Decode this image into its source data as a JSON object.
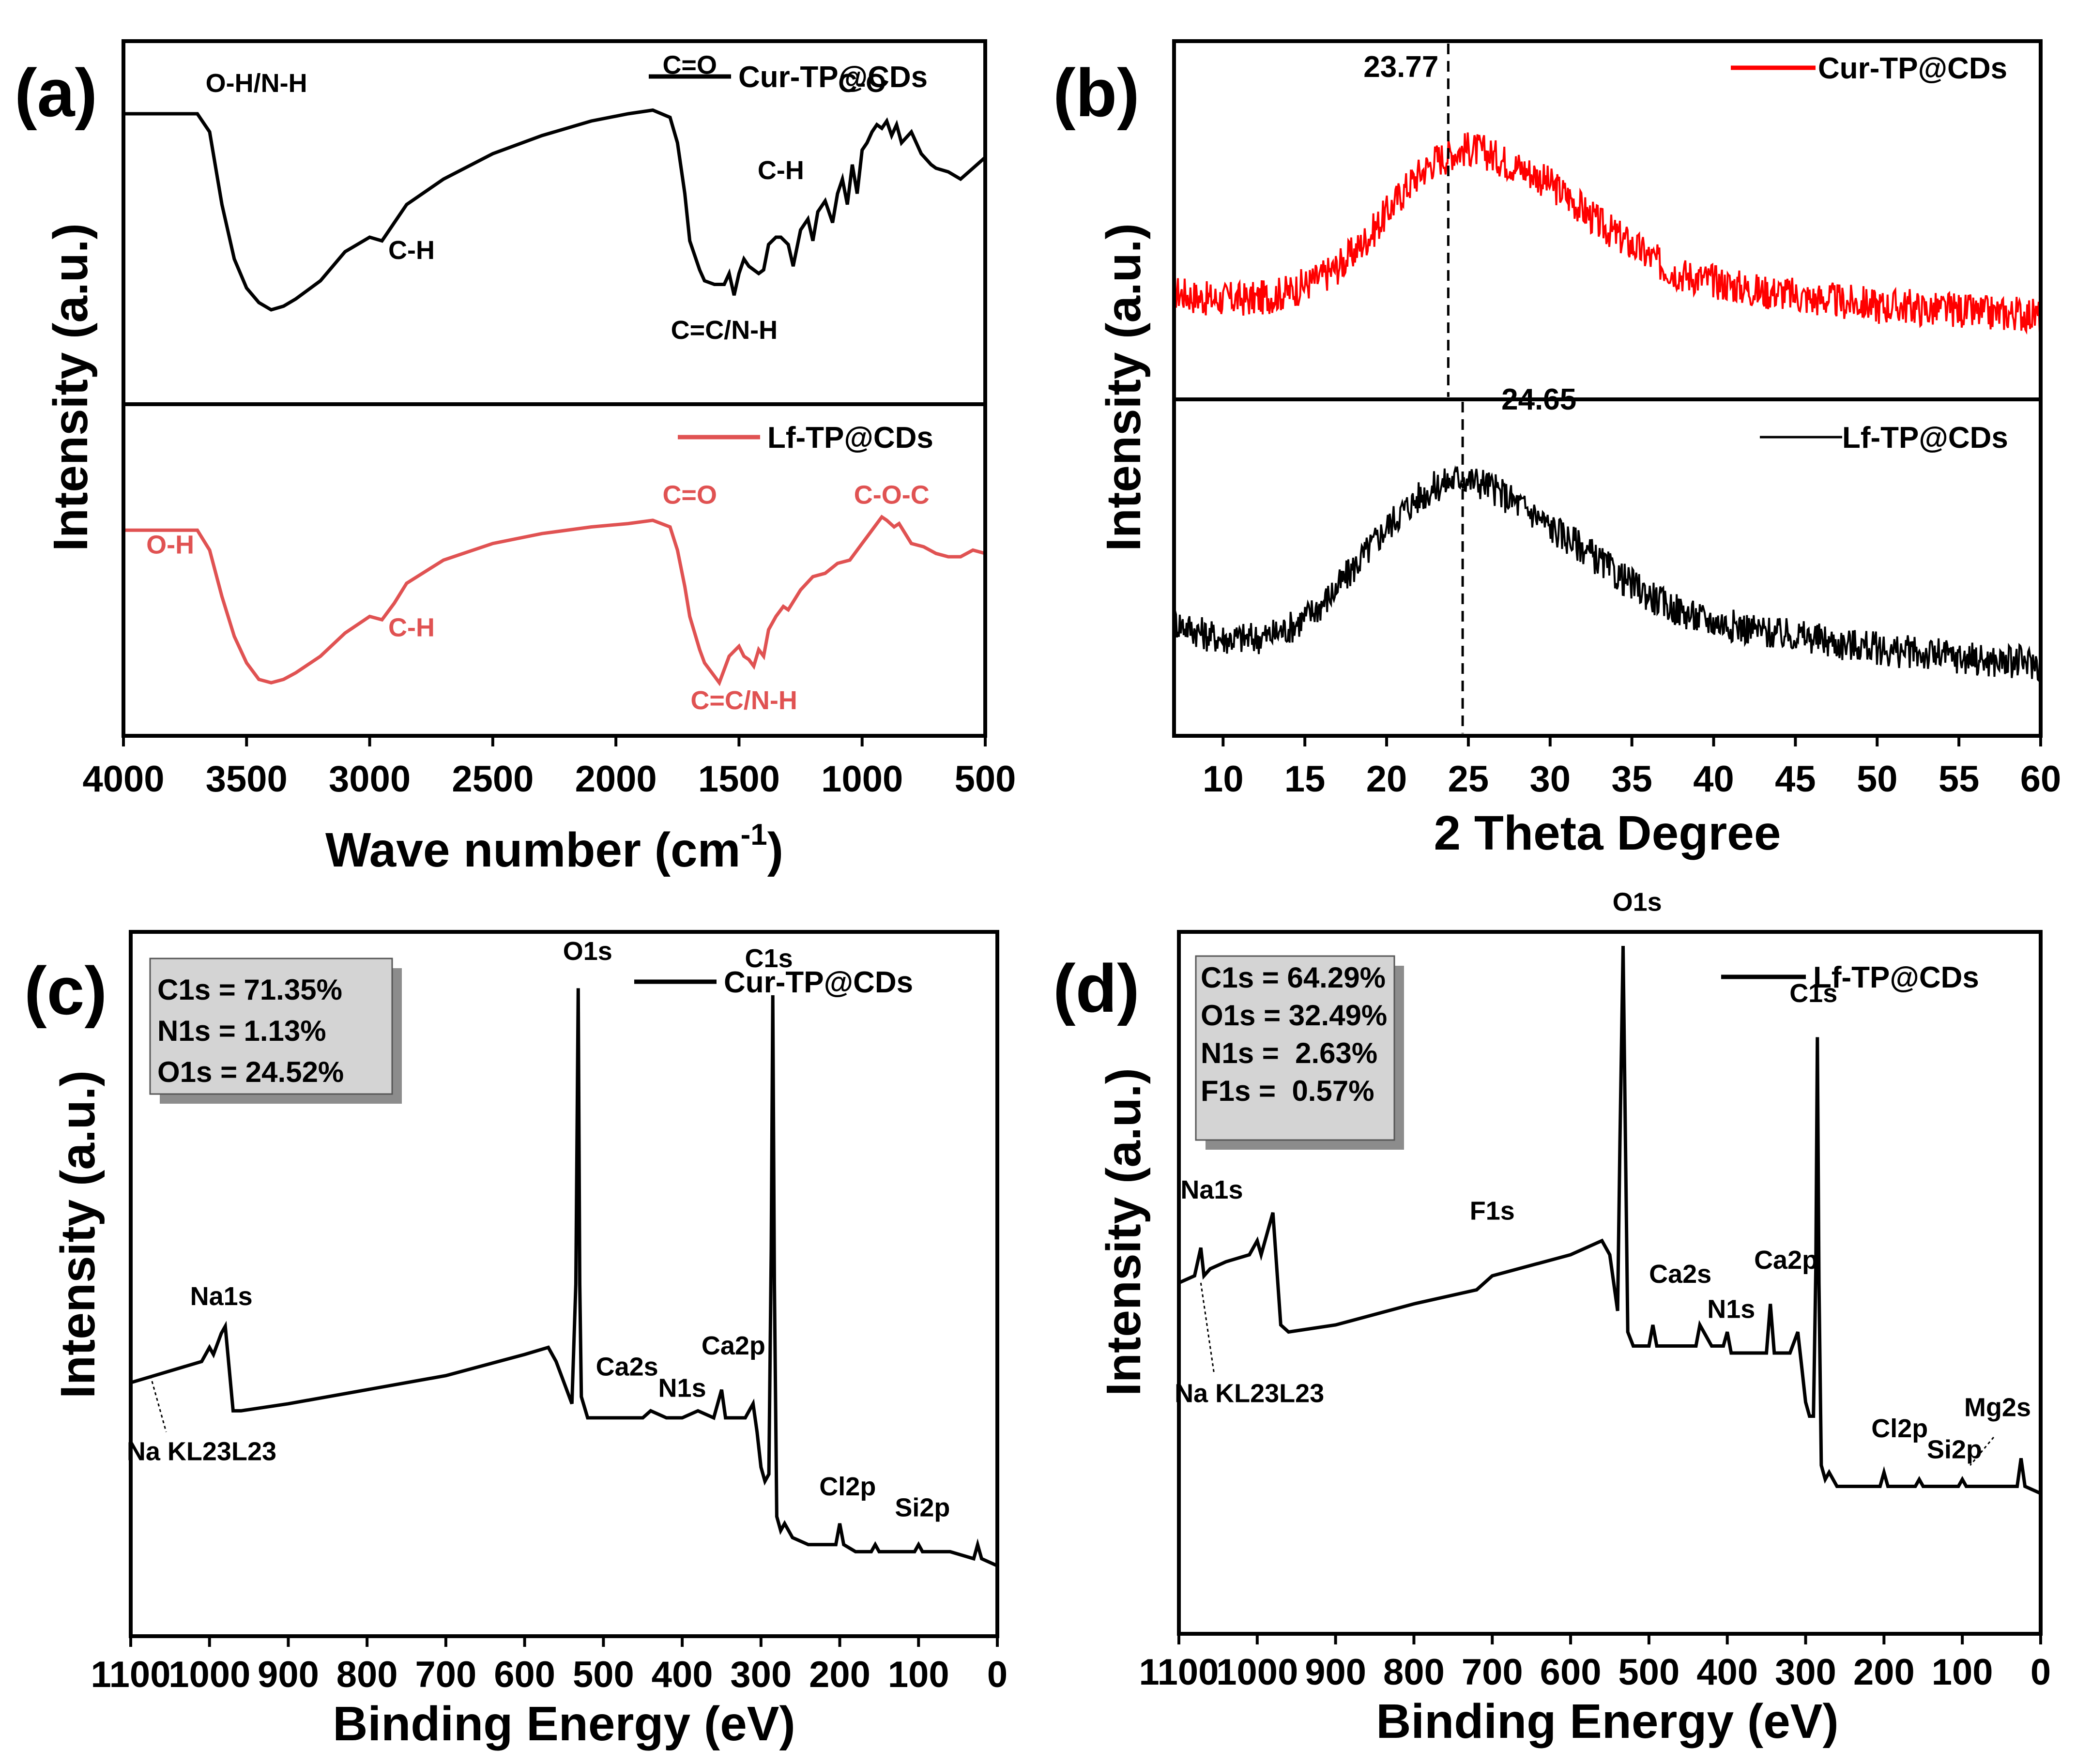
{
  "chart_data": [
    {
      "panel": "(a)",
      "type": "line",
      "xlabel": "Wave number (cm",
      "xlabel_sup": "-1",
      "xlabel_close": ")",
      "ylabel": "Intensity (a.u.)",
      "xlim": [
        4000,
        500
      ],
      "xticks": [
        "4000",
        "3500",
        "3000",
        "2500",
        "2000",
        "1500",
        "1000",
        "500"
      ],
      "series": [
        {
          "name": "Cur-TP@CDs",
          "color": "#000000",
          "x": [
            4000,
            3800,
            3700,
            3650,
            3600,
            3550,
            3500,
            3450,
            3400,
            3350,
            3300,
            3200,
            3100,
            3000,
            2950,
            2930,
            2900,
            2850,
            2700,
            2500,
            2300,
            2100,
            1950,
            1850,
            1780,
            1750,
            1720,
            1700,
            1660,
            1640,
            1600,
            1560,
            1540,
            1520,
            1500,
            1480,
            1460,
            1420,
            1400,
            1380,
            1350,
            1330,
            1300,
            1280,
            1250,
            1220,
            1200,
            1180,
            1150,
            1120,
            1100,
            1080,
            1060,
            1040,
            1020,
            1000,
            980,
            960,
            940,
            920,
            900,
            880,
            860,
            840,
            800,
            760,
            720,
            700,
            650,
            600,
            550,
            500
          ],
          "y": [
            0.8,
            0.8,
            0.8,
            0.75,
            0.55,
            0.4,
            0.32,
            0.28,
            0.26,
            0.27,
            0.29,
            0.34,
            0.42,
            0.46,
            0.45,
            0.47,
            0.5,
            0.55,
            0.62,
            0.69,
            0.74,
            0.78,
            0.8,
            0.81,
            0.79,
            0.72,
            0.58,
            0.45,
            0.37,
            0.34,
            0.33,
            0.33,
            0.36,
            0.3,
            0.36,
            0.4,
            0.38,
            0.36,
            0.37,
            0.44,
            0.46,
            0.46,
            0.44,
            0.38,
            0.48,
            0.51,
            0.45,
            0.53,
            0.56,
            0.5,
            0.58,
            0.62,
            0.55,
            0.66,
            0.58,
            0.7,
            0.72,
            0.75,
            0.77,
            0.76,
            0.78,
            0.74,
            0.77,
            0.72,
            0.75,
            0.69,
            0.66,
            0.65,
            0.64,
            0.62,
            0.65,
            0.68
          ]
        },
        {
          "name": "Lf-TP@CDs",
          "color": "#e05252",
          "x": [
            4000,
            3800,
            3700,
            3650,
            3600,
            3550,
            3500,
            3450,
            3400,
            3350,
            3300,
            3200,
            3100,
            3000,
            2950,
            2930,
            2900,
            2850,
            2700,
            2500,
            2300,
            2100,
            1950,
            1850,
            1780,
            1750,
            1720,
            1700,
            1660,
            1640,
            1620,
            1600,
            1580,
            1560,
            1540,
            1500,
            1480,
            1460,
            1440,
            1420,
            1400,
            1380,
            1350,
            1320,
            1300,
            1250,
            1200,
            1150,
            1100,
            1050,
            1000,
            980,
            950,
            920,
            900,
            870,
            850,
            800,
            750,
            700,
            650,
            600,
            550,
            500
          ],
          "y": [
            0.62,
            0.62,
            0.62,
            0.56,
            0.42,
            0.3,
            0.22,
            0.17,
            0.16,
            0.17,
            0.19,
            0.24,
            0.31,
            0.36,
            0.35,
            0.37,
            0.4,
            0.46,
            0.53,
            0.58,
            0.61,
            0.63,
            0.64,
            0.65,
            0.63,
            0.56,
            0.45,
            0.36,
            0.26,
            0.22,
            0.2,
            0.18,
            0.16,
            0.2,
            0.24,
            0.27,
            0.24,
            0.23,
            0.21,
            0.26,
            0.24,
            0.32,
            0.36,
            0.39,
            0.38,
            0.44,
            0.48,
            0.49,
            0.52,
            0.53,
            0.58,
            0.6,
            0.63,
            0.66,
            0.65,
            0.63,
            0.64,
            0.58,
            0.57,
            0.55,
            0.54,
            0.54,
            0.56,
            0.55
          ]
        }
      ],
      "annotations_top": [
        {
          "text": "O-H/N-H",
          "x": 3460,
          "y": 0.86
        },
        {
          "text": "C-H",
          "x": 2830,
          "y": 0.4
        },
        {
          "text": "C=O",
          "x": 1700,
          "y": 0.91
        },
        {
          "text": "C=C/N-H",
          "x": 1560,
          "y": 0.18
        },
        {
          "text": "C-H",
          "x": 1330,
          "y": 0.62
        },
        {
          "text": "C-O",
          "x": 1000,
          "y": 0.86
        }
      ],
      "annotations_bottom": [
        {
          "text": "O-H",
          "x": 3810,
          "y": 0.55
        },
        {
          "text": "C-H",
          "x": 2830,
          "y": 0.3
        },
        {
          "text": "C=O",
          "x": 1700,
          "y": 0.7
        },
        {
          "text": "C=C/N-H",
          "x": 1480,
          "y": 0.08
        },
        {
          "text": "C-O-C",
          "x": 880,
          "y": 0.7
        }
      ]
    },
    {
      "panel": "(b)",
      "type": "line",
      "xlabel": "2 Theta Degree",
      "ylabel": "Intensity (a.u.)",
      "xlim": [
        7,
        60
      ],
      "xticks": [
        "10",
        "15",
        "20",
        "25",
        "30",
        "35",
        "40",
        "45",
        "50",
        "55",
        "60"
      ],
      "series": [
        {
          "name": "Cur-TP@CDs",
          "color": "#ff0000",
          "x": [
            7,
            8,
            9,
            10,
            11,
            12,
            13,
            14,
            15,
            16,
            17,
            18,
            19,
            20,
            21,
            22,
            23,
            23.77,
            24,
            25,
            26,
            27,
            28,
            29,
            30,
            31,
            32,
            33,
            34,
            35,
            36,
            37,
            38,
            39,
            40,
            41,
            42,
            43,
            44,
            45,
            46,
            47,
            48,
            49,
            50,
            51,
            52,
            53,
            54,
            55,
            56,
            57,
            58,
            59,
            60
          ],
          "y": [
            0.3,
            0.29,
            0.28,
            0.28,
            0.28,
            0.28,
            0.29,
            0.3,
            0.32,
            0.34,
            0.37,
            0.41,
            0.46,
            0.52,
            0.58,
            0.63,
            0.67,
            0.68,
            0.69,
            0.7,
            0.69,
            0.67,
            0.65,
            0.63,
            0.6,
            0.57,
            0.53,
            0.49,
            0.46,
            0.43,
            0.4,
            0.37,
            0.35,
            0.34,
            0.33,
            0.32,
            0.31,
            0.3,
            0.3,
            0.29,
            0.28,
            0.28,
            0.27,
            0.27,
            0.26,
            0.26,
            0.26,
            0.25,
            0.25,
            0.25,
            0.24,
            0.24,
            0.24,
            0.24,
            0.23
          ],
          "noise": 0.05
        },
        {
          "name": "Lf-TP@CDs",
          "color": "#000000",
          "x": [
            7,
            8,
            9,
            10,
            11,
            12,
            13,
            14,
            15,
            16,
            17,
            18,
            19,
            20,
            21,
            22,
            23,
            24,
            24.65,
            25,
            26,
            27,
            28,
            29,
            30,
            31,
            32,
            33,
            34,
            35,
            36,
            37,
            38,
            39,
            40,
            41,
            42,
            43,
            44,
            45,
            46,
            47,
            48,
            49,
            50,
            51,
            52,
            53,
            54,
            55,
            56,
            57,
            58,
            59,
            60
          ],
          "y": [
            0.34,
            0.32,
            0.3,
            0.29,
            0.29,
            0.29,
            0.3,
            0.32,
            0.35,
            0.39,
            0.44,
            0.5,
            0.56,
            0.62,
            0.67,
            0.71,
            0.74,
            0.76,
            0.77,
            0.76,
            0.75,
            0.72,
            0.69,
            0.66,
            0.62,
            0.59,
            0.56,
            0.52,
            0.48,
            0.45,
            0.42,
            0.39,
            0.37,
            0.35,
            0.34,
            0.33,
            0.32,
            0.31,
            0.3,
            0.3,
            0.29,
            0.28,
            0.27,
            0.27,
            0.26,
            0.25,
            0.25,
            0.24,
            0.24,
            0.23,
            0.23,
            0.22,
            0.22,
            0.22,
            0.21
          ],
          "noise": 0.05
        }
      ],
      "peak_labels": [
        {
          "text": "23.77",
          "x": 23.77
        },
        {
          "text": "24.65",
          "x": 24.65
        }
      ]
    },
    {
      "panel": "(c)",
      "type": "line",
      "xlabel": "Binding Energy (eV)",
      "ylabel": "Intensity (a.u.)",
      "xlim": [
        1100,
        0
      ],
      "xticks": [
        "1100",
        "1000",
        "900",
        "800",
        "700",
        "600",
        "500",
        "400",
        "300",
        "200",
        "100",
        "0"
      ],
      "series": [
        {
          "name": "Cur-TP@CDs",
          "color": "#000000",
          "x": [
            1100,
            1070,
            1040,
            1010,
            1000,
            995,
            985,
            980,
            975,
            970,
            960,
            900,
            800,
            700,
            600,
            570,
            560,
            550,
            540,
            535,
            532,
            530,
            528,
            520,
            500,
            450,
            440,
            420,
            400,
            380,
            360,
            350,
            345,
            340,
            320,
            310,
            305,
            300,
            295,
            290,
            287,
            285,
            283,
            280,
            275,
            270,
            260,
            240,
            220,
            205,
            200,
            195,
            180,
            160,
            155,
            150,
            120,
            105,
            100,
            95,
            60,
            30,
            25,
            20,
            0
          ],
          "y": [
            0.36,
            0.37,
            0.38,
            0.39,
            0.41,
            0.4,
            0.43,
            0.44,
            0.38,
            0.32,
            0.32,
            0.33,
            0.35,
            0.37,
            0.4,
            0.41,
            0.39,
            0.36,
            0.33,
            0.5,
            0.92,
            0.5,
            0.34,
            0.31,
            0.31,
            0.31,
            0.32,
            0.31,
            0.31,
            0.32,
            0.31,
            0.35,
            0.31,
            0.31,
            0.31,
            0.33,
            0.29,
            0.24,
            0.22,
            0.23,
            0.55,
            0.91,
            0.5,
            0.17,
            0.15,
            0.16,
            0.14,
            0.13,
            0.13,
            0.13,
            0.16,
            0.13,
            0.12,
            0.12,
            0.13,
            0.12,
            0.12,
            0.12,
            0.13,
            0.12,
            0.12,
            0.11,
            0.13,
            0.11,
            0.1
          ]
        }
      ],
      "peak_labels": [
        {
          "text": "Na1s",
          "x": 985,
          "y": 0.47
        },
        {
          "text": "Na KL23L23",
          "x": 1010,
          "y": 0.25
        },
        {
          "text": "O1s",
          "x": 520,
          "y": 0.96
        },
        {
          "text": "Ca2s",
          "x": 470,
          "y": 0.37
        },
        {
          "text": "N1s",
          "x": 400,
          "y": 0.34
        },
        {
          "text": "Ca2p",
          "x": 335,
          "y": 0.4
        },
        {
          "text": "C1s",
          "x": 290,
          "y": 0.95
        },
        {
          "text": "Cl2p",
          "x": 190,
          "y": 0.2
        },
        {
          "text": "Si2p",
          "x": 95,
          "y": 0.17
        }
      ],
      "composition": [
        "C1s = 71.35%",
        "N1s = 1.13%",
        "O1s = 24.52%"
      ]
    },
    {
      "panel": "(d)",
      "type": "line",
      "xlabel": "Binding Energy (eV)",
      "ylabel": "Intensity (a.u.)",
      "xlim": [
        1100,
        0
      ],
      "xticks": [
        "1100",
        "1000",
        "900",
        "800",
        "700",
        "600",
        "500",
        "400",
        "300",
        "200",
        "100",
        "0"
      ],
      "series": [
        {
          "name": "Lf-TP@CDs",
          "color": "#000000",
          "x": [
            1100,
            1080,
            1072,
            1068,
            1060,
            1040,
            1010,
            1000,
            995,
            985,
            980,
            975,
            970,
            960,
            900,
            800,
            720,
            700,
            600,
            560,
            550,
            545,
            540,
            537,
            533,
            530,
            527,
            520,
            500,
            495,
            490,
            450,
            440,
            435,
            420,
            405,
            400,
            395,
            360,
            350,
            345,
            340,
            320,
            310,
            305,
            300,
            295,
            290,
            287,
            285,
            283,
            280,
            275,
            270,
            260,
            240,
            220,
            205,
            200,
            195,
            180,
            160,
            155,
            150,
            120,
            105,
            100,
            95,
            60,
            30,
            25,
            20,
            0
          ],
          "y": [
            0.5,
            0.51,
            0.55,
            0.51,
            0.52,
            0.53,
            0.54,
            0.56,
            0.54,
            0.58,
            0.6,
            0.52,
            0.44,
            0.43,
            0.44,
            0.47,
            0.49,
            0.51,
            0.54,
            0.56,
            0.54,
            0.5,
            0.46,
            0.7,
            0.98,
            0.7,
            0.43,
            0.41,
            0.41,
            0.44,
            0.41,
            0.41,
            0.41,
            0.44,
            0.41,
            0.41,
            0.43,
            0.4,
            0.4,
            0.4,
            0.47,
            0.4,
            0.4,
            0.43,
            0.38,
            0.33,
            0.31,
            0.31,
            0.52,
            0.85,
            0.5,
            0.24,
            0.22,
            0.23,
            0.21,
            0.21,
            0.21,
            0.21,
            0.23,
            0.21,
            0.21,
            0.21,
            0.22,
            0.21,
            0.21,
            0.21,
            0.22,
            0.21,
            0.21,
            0.21,
            0.25,
            0.21,
            0.2
          ]
        }
      ],
      "peak_labels": [
        {
          "text": "Na1s",
          "x": 1058,
          "y": 0.62
        },
        {
          "text": "Na KL23L23",
          "x": 1010,
          "y": 0.33
        },
        {
          "text": "F1s",
          "x": 700,
          "y": 0.59
        },
        {
          "text": "O1s",
          "x": 515,
          "y": 1.03
        },
        {
          "text": "Ca2s",
          "x": 460,
          "y": 0.5
        },
        {
          "text": "N1s",
          "x": 395,
          "y": 0.45
        },
        {
          "text": "Ca2p",
          "x": 325,
          "y": 0.52
        },
        {
          "text": "C1s",
          "x": 290,
          "y": 0.9
        },
        {
          "text": "Cl2p",
          "x": 180,
          "y": 0.28
        },
        {
          "text": "Si2p",
          "x": 110,
          "y": 0.25
        },
        {
          "text": "Mg2s",
          "x": 55,
          "y": 0.31
        }
      ],
      "composition": [
        "C1s = 64.29%",
        "O1s = 32.49%",
        "N1s =  2.63%",
        "F1s =  0.57%"
      ]
    }
  ]
}
